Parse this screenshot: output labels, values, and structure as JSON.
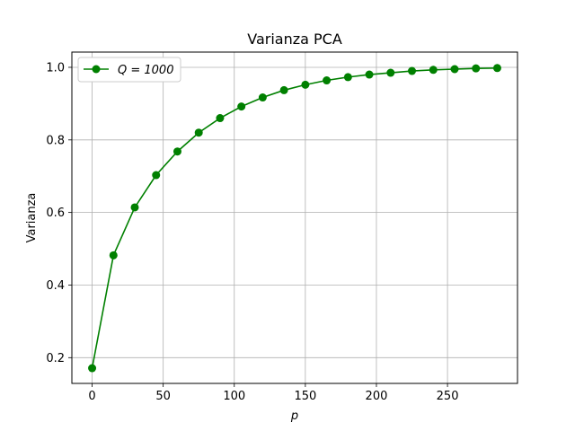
{
  "chart_data": {
    "type": "line",
    "title": "Varianza PCA",
    "xlabel": "p",
    "ylabel": "Varianza",
    "xlim": [
      -14.25,
      299.25
    ],
    "ylim": [
      0.129,
      1.042
    ],
    "xticks": [
      0,
      50,
      100,
      150,
      200,
      250
    ],
    "yticks": [
      0.2,
      0.4,
      0.6,
      0.8,
      1.0
    ],
    "ytick_labels": [
      "0.2",
      "0.4",
      "0.6",
      "0.8",
      "1.0"
    ],
    "grid": true,
    "legend_position": "top-left",
    "series": [
      {
        "name": "Q = 1000",
        "color": "#008000",
        "marker": "circle",
        "x": [
          0,
          15,
          30,
          45,
          60,
          75,
          90,
          105,
          120,
          135,
          150,
          165,
          180,
          195,
          210,
          225,
          240,
          255,
          270,
          285
        ],
        "y": [
          0.171,
          0.482,
          0.614,
          0.703,
          0.768,
          0.82,
          0.86,
          0.892,
          0.917,
          0.937,
          0.952,
          0.964,
          0.973,
          0.98,
          0.985,
          0.99,
          0.993,
          0.995,
          0.997,
          0.998
        ]
      }
    ]
  }
}
